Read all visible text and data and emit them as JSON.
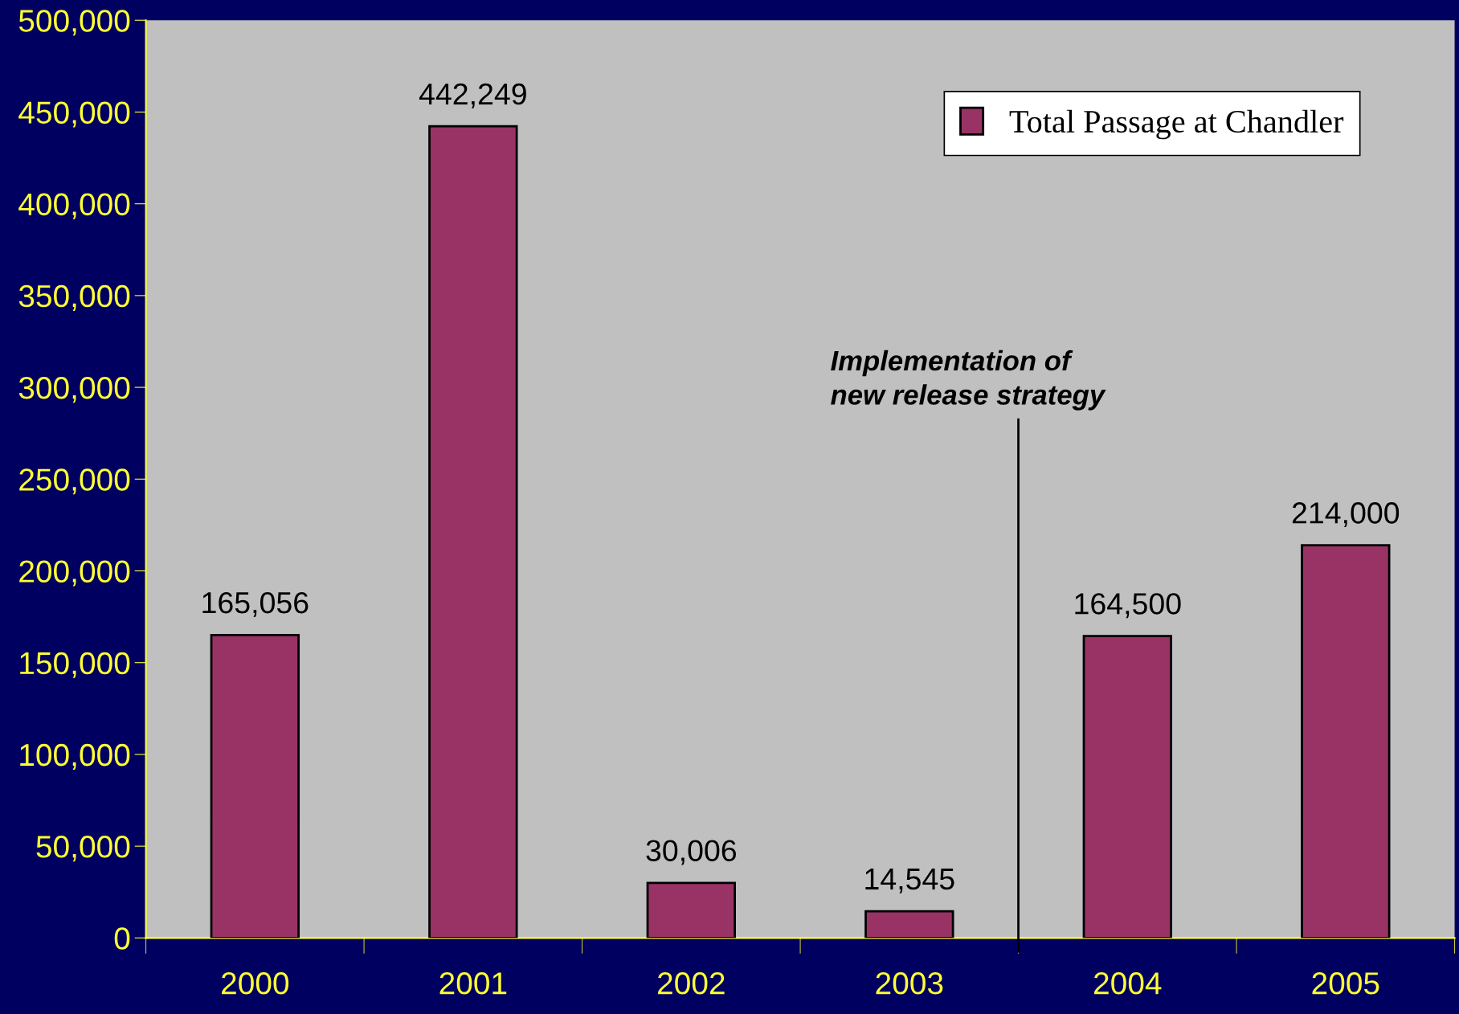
{
  "chart_data": {
    "type": "bar",
    "categories": [
      "2000",
      "2001",
      "2002",
      "2003",
      "2004",
      "2005"
    ],
    "series": [
      {
        "name": "Total Passage at Chandler",
        "color": "#993366",
        "values": [
          165056,
          442249,
          30006,
          14545,
          164500,
          214000
        ]
      }
    ],
    "ylim": [
      0,
      500000
    ],
    "yticks": [
      {
        "value": 0,
        "label": "0"
      },
      {
        "value": 50000,
        "label": "50,000"
      },
      {
        "value": 100000,
        "label": "100,000"
      },
      {
        "value": 150000,
        "label": "150,000"
      },
      {
        "value": 200000,
        "label": "200,000"
      },
      {
        "value": 250000,
        "label": "250,000"
      },
      {
        "value": 300000,
        "label": "300,000"
      },
      {
        "value": 350000,
        "label": "350,000"
      },
      {
        "value": 400000,
        "label": "400,000"
      },
      {
        "value": 450000,
        "label": "450,000"
      },
      {
        "value": 500000,
        "label": "500,000"
      }
    ],
    "value_labels": [
      "165,056",
      "442,249",
      "30,006",
      "14,545",
      "164,500",
      "214,000"
    ],
    "annotations": [
      "Implementation of\nnew release strategy"
    ],
    "grid": false,
    "legend": "top right"
  }
}
